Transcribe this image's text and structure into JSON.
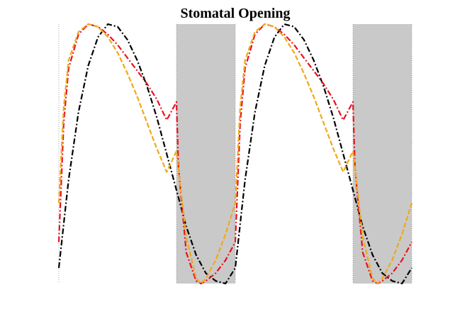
{
  "chart_data": {
    "type": "line",
    "title": "Stomatal Opening",
    "xlabel": "",
    "ylabel": "",
    "x_range": [
      0,
      36
    ],
    "y_range": [
      0,
      1
    ],
    "grid": false,
    "axes_visible": false,
    "shaded_intervals": [
      {
        "x0": 12,
        "x1": 18,
        "color": "#c9c9c9"
      },
      {
        "x0": 30,
        "x1": 36,
        "color": "#c9c9c9"
      }
    ],
    "vertical_dotted_lines": [
      0,
      12,
      18,
      30,
      36
    ],
    "series": [
      {
        "color": "#000000",
        "style": "dash-dot",
        "x": [
          0,
          1,
          2,
          3,
          4,
          5,
          6,
          7,
          8,
          9,
          10,
          11,
          12,
          13,
          14,
          15,
          16,
          17,
          18,
          19,
          20,
          21,
          22,
          23,
          24,
          25,
          26,
          27,
          28,
          29,
          30,
          31,
          32,
          33,
          34,
          35,
          36
        ],
        "y": [
          0.06,
          0.4,
          0.66,
          0.84,
          0.95,
          1.0,
          0.99,
          0.94,
          0.86,
          0.76,
          0.64,
          0.5,
          0.36,
          0.22,
          0.11,
          0.04,
          0.01,
          0.0,
          0.06,
          0.4,
          0.66,
          0.84,
          0.95,
          1.0,
          0.99,
          0.94,
          0.86,
          0.76,
          0.64,
          0.5,
          0.36,
          0.22,
          0.11,
          0.04,
          0.01,
          0.0,
          0.06
        ]
      },
      {
        "color": "#e8121c",
        "style": "dash-dot",
        "x": [
          0,
          0.5,
          1,
          2,
          3,
          4,
          5,
          6,
          7,
          8,
          9,
          10,
          11,
          12,
          12.2,
          13,
          14,
          14.5,
          15,
          16,
          17,
          18,
          18.5,
          19,
          20,
          21,
          22,
          23,
          24,
          25,
          26,
          27,
          28,
          29,
          30,
          30.2,
          31,
          32,
          32.5,
          33,
          34,
          35,
          36
        ],
        "y": [
          0.16,
          0.62,
          0.83,
          0.96,
          1.0,
          0.99,
          0.96,
          0.92,
          0.87,
          0.82,
          0.77,
          0.71,
          0.63,
          0.7,
          0.45,
          0.12,
          0.01,
          0.0,
          0.01,
          0.04,
          0.09,
          0.16,
          0.62,
          0.83,
          0.96,
          1.0,
          0.99,
          0.96,
          0.92,
          0.87,
          0.82,
          0.77,
          0.71,
          0.63,
          0.7,
          0.45,
          0.12,
          0.01,
          0.0,
          0.01,
          0.04,
          0.09,
          0.16
        ]
      },
      {
        "color": "#f0a81a",
        "style": "dashed",
        "x": [
          0,
          0.5,
          1,
          2,
          3,
          4,
          5,
          6,
          7,
          8,
          9,
          10,
          11,
          12,
          13,
          14,
          14.5,
          15,
          16,
          17,
          18,
          18.5,
          19,
          20,
          21,
          22,
          23,
          24,
          25,
          26,
          27,
          28,
          29,
          30,
          31,
          32,
          32.5,
          33,
          34,
          35,
          36
        ],
        "y": [
          0.31,
          0.68,
          0.86,
          0.97,
          1.0,
          0.99,
          0.95,
          0.89,
          0.81,
          0.72,
          0.62,
          0.52,
          0.43,
          0.51,
          0.18,
          0.02,
          0.0,
          0.02,
          0.09,
          0.19,
          0.31,
          0.68,
          0.86,
          0.97,
          1.0,
          0.99,
          0.95,
          0.89,
          0.81,
          0.72,
          0.62,
          0.52,
          0.43,
          0.51,
          0.18,
          0.02,
          0.0,
          0.02,
          0.09,
          0.19,
          0.31
        ]
      }
    ]
  }
}
